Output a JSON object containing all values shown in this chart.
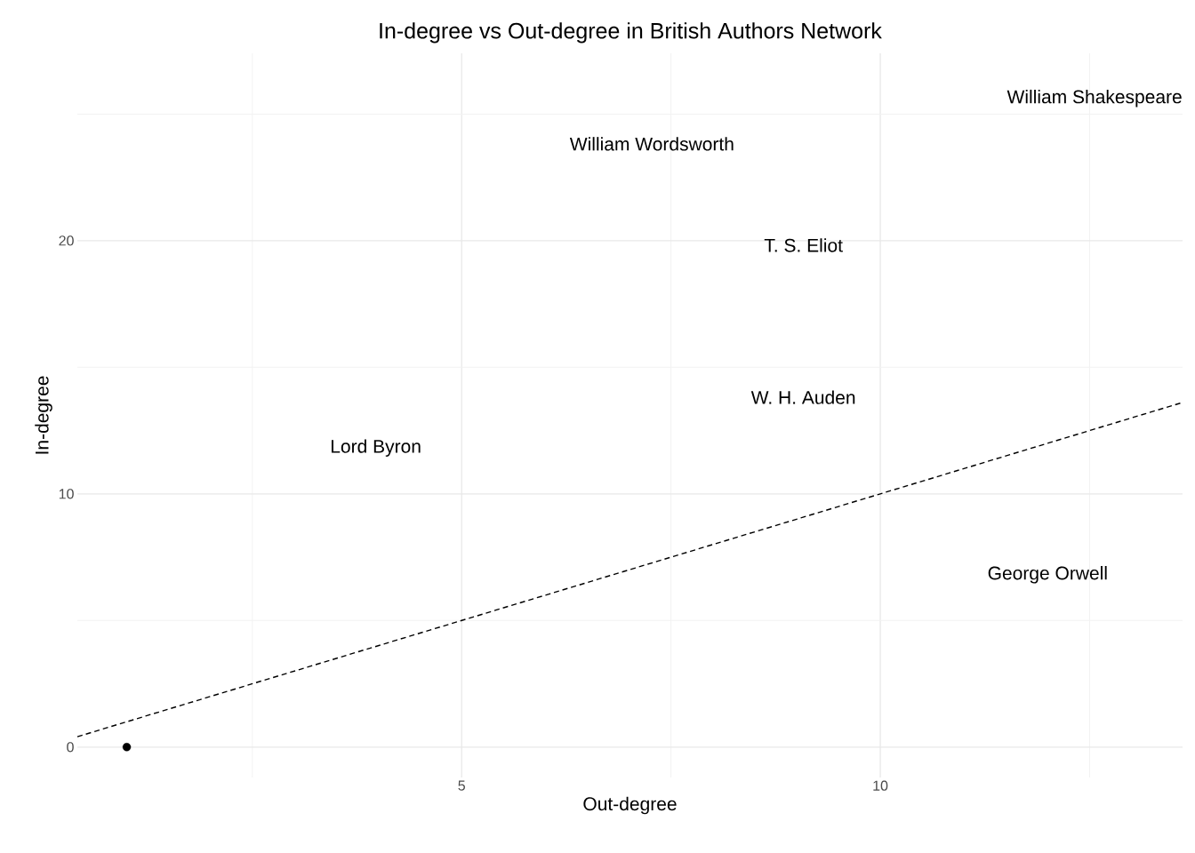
{
  "chart_data": {
    "type": "scatter",
    "title": "In-degree vs Out-degree in British Authors Network",
    "xlabel": "Out-degree",
    "ylabel": "In-degree",
    "xlim": [
      0.41,
      13.61
    ],
    "ylim": [
      -1.2,
      27.4
    ],
    "xticks": [
      {
        "value": 2.5,
        "label": null
      },
      5,
      {
        "value": 7.5,
        "label": null
      },
      10,
      {
        "value": 12.5,
        "label": null
      }
    ],
    "yticks": [
      0,
      {
        "value": 5,
        "label": null
      },
      10,
      {
        "value": 15,
        "label": null
      },
      20,
      {
        "value": 25,
        "label": null
      }
    ],
    "grid": true,
    "series": [
      {
        "color": "#000000",
        "marker": "circle",
        "x": [
          1
        ],
        "values": [
          0
        ]
      },
      {
        "type": "line",
        "color": "#000000",
        "line_style": "dashed",
        "x": [
          0.41,
          13.61
        ],
        "values": [
          0.41,
          13.61
        ]
      }
    ],
    "annotations": [
      "William Shakespeare",
      "William Wordsworth",
      "T. S. Eliot",
      "W. H. Auden",
      "Lord Byron",
      "George Orwell"
    ]
  }
}
